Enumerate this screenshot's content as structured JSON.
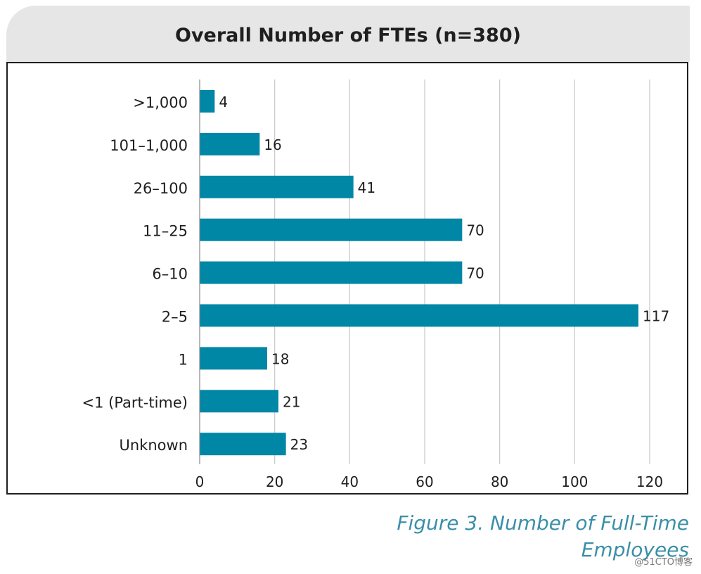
{
  "chart_data": {
    "type": "bar",
    "orientation": "horizontal",
    "title": "Overall Number of FTEs (n=380)",
    "categories": [
      ">1,000",
      "101–1,000",
      "26–100",
      "11–25",
      "6–10",
      "2–5",
      "1",
      "<1 (Part-time)",
      "Unknown"
    ],
    "values": [
      4,
      16,
      41,
      70,
      70,
      117,
      18,
      21,
      23
    ],
    "xlim": [
      0,
      120
    ],
    "xticks": [
      0,
      20,
      40,
      60,
      80,
      100,
      120
    ],
    "grid": true,
    "bar_color": "#0087a6"
  },
  "caption": "Figure 3. Number of Full-Time Employees",
  "watermark": "@51CTO博客"
}
